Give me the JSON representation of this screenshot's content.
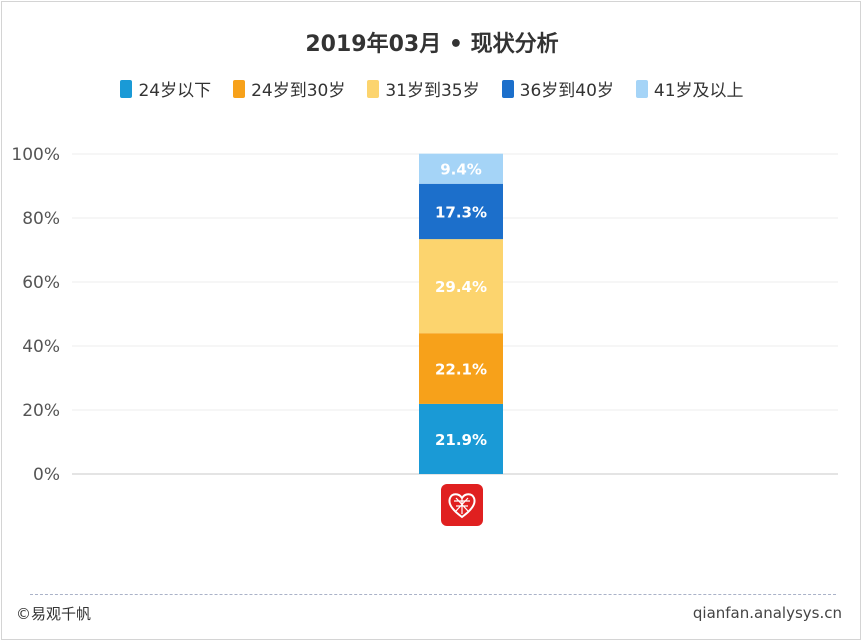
{
  "chart_data": {
    "type": "bar",
    "stacked": true,
    "title": "2019年03月 • 现状分析",
    "categories": [
      ""
    ],
    "series": [
      {
        "name": "24岁以下",
        "values": [
          21.9
        ],
        "label": "21.9%",
        "color": "#1a9ad6"
      },
      {
        "name": "24岁到30岁",
        "values": [
          22.1
        ],
        "label": "22.1%",
        "color": "#f7a11a"
      },
      {
        "name": "31岁到35岁",
        "values": [
          29.4
        ],
        "label": "29.4%",
        "color": "#fcd46e"
      },
      {
        "name": "36岁到40岁",
        "values": [
          17.3
        ],
        "label": "17.3%",
        "color": "#1c6fcb"
      },
      {
        "name": "41岁及以上",
        "values": [
          9.4
        ],
        "label": "9.4%",
        "color": "#a5d4f7"
      }
    ],
    "yticks": [
      "0%",
      "20%",
      "40%",
      "60%",
      "80%",
      "100%"
    ],
    "ylim": [
      0,
      100
    ],
    "grid": true,
    "legend_position": "top"
  },
  "footer": {
    "source": "©易观千帆",
    "url": "qianfan.analysys.cn"
  },
  "icons": {
    "brand_logo": "pinduoduo-heart-logo"
  }
}
